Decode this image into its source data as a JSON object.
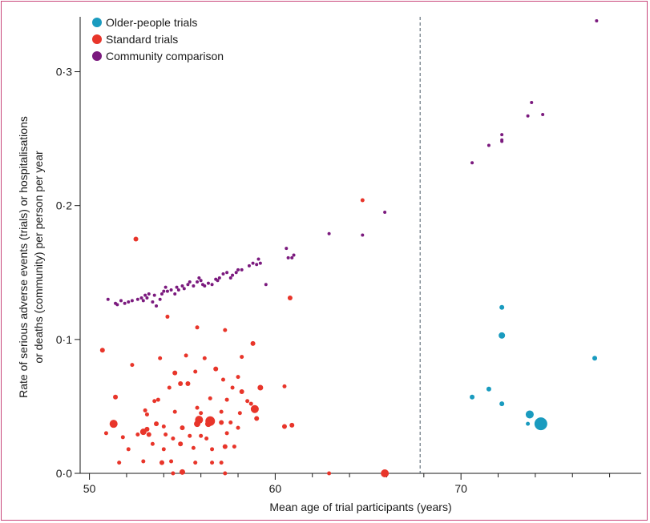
{
  "chart_data": {
    "type": "scatter",
    "xlabel": "Mean age of trial participants (years)",
    "ylabel_line1": "Rate of serious adverse events (trials) or hospitalisations",
    "ylabel_line2": "or deaths (community) per person per year",
    "xlim": [
      49.5,
      79.7
    ],
    "ylim": [
      0,
      0.341
    ],
    "x_ticks": [
      {
        "value": 50,
        "label": "50"
      },
      {
        "value": 60,
        "label": "60"
      },
      {
        "value": 70,
        "label": "70"
      }
    ],
    "x_minor_ticks": [
      52,
      54,
      56,
      58,
      62,
      64,
      66,
      68,
      72,
      74,
      76,
      78
    ],
    "y_ticks": [
      {
        "value": 0.0,
        "label": "0·0"
      },
      {
        "value": 0.1,
        "label": "0·1"
      },
      {
        "value": 0.2,
        "label": "0·2"
      },
      {
        "value": 0.3,
        "label": "0·3"
      }
    ],
    "reference_line_x": 67.8,
    "legend_position": "top-left",
    "series": [
      {
        "name": "Older-people trials",
        "color": "#1a9bbf",
        "points": [
          [
            72.2,
            0.124,
            3
          ],
          [
            72.2,
            0.103,
            4
          ],
          [
            77.2,
            0.086,
            3
          ],
          [
            70.6,
            0.057,
            3
          ],
          [
            71.5,
            0.063,
            3
          ],
          [
            72.2,
            0.052,
            3
          ],
          [
            73.7,
            0.044,
            5
          ],
          [
            73.6,
            0.037,
            2.5
          ],
          [
            74.3,
            0.037,
            8
          ]
        ]
      },
      {
        "name": "Standard trials",
        "color": "#e8352a",
        "points": [
          [
            52.5,
            0.175,
            3
          ],
          [
            64.7,
            0.204,
            2.5
          ],
          [
            60.8,
            0.131,
            3
          ],
          [
            50.7,
            0.092,
            3
          ],
          [
            54.2,
            0.117,
            2.5
          ],
          [
            55.8,
            0.109,
            2.5
          ],
          [
            57.3,
            0.107,
            2.5
          ],
          [
            58.8,
            0.097,
            3
          ],
          [
            58.2,
            0.087,
            2.5
          ],
          [
            52.3,
            0.081,
            2.5
          ],
          [
            53.8,
            0.086,
            2.5
          ],
          [
            55.2,
            0.088,
            2.5
          ],
          [
            56.2,
            0.086,
            2.5
          ],
          [
            55.7,
            0.076,
            2.5
          ],
          [
            54.6,
            0.075,
            3
          ],
          [
            56.8,
            0.078,
            3
          ],
          [
            58.0,
            0.072,
            2.5
          ],
          [
            57.2,
            0.07,
            2.5
          ],
          [
            54.9,
            0.067,
            3
          ],
          [
            55.3,
            0.067,
            3
          ],
          [
            54.3,
            0.064,
            2.5
          ],
          [
            57.7,
            0.064,
            2.5
          ],
          [
            58.2,
            0.061,
            3
          ],
          [
            59.2,
            0.064,
            3.5
          ],
          [
            60.5,
            0.065,
            2.5
          ],
          [
            51.4,
            0.057,
            3
          ],
          [
            53.7,
            0.055,
            2.5
          ],
          [
            53.5,
            0.054,
            2.5
          ],
          [
            56.5,
            0.056,
            2.5
          ],
          [
            57.4,
            0.055,
            2.5
          ],
          [
            58.5,
            0.054,
            2.5
          ],
          [
            58.7,
            0.052,
            2.5
          ],
          [
            58.9,
            0.048,
            5
          ],
          [
            53.0,
            0.047,
            2.5
          ],
          [
            53.1,
            0.044,
            2.5
          ],
          [
            55.8,
            0.049,
            2.5
          ],
          [
            54.6,
            0.046,
            2.5
          ],
          [
            56.0,
            0.045,
            2.5
          ],
          [
            57.1,
            0.046,
            2.5
          ],
          [
            58.1,
            0.045,
            2.5
          ],
          [
            51.3,
            0.037,
            5
          ],
          [
            52.9,
            0.031,
            4
          ],
          [
            53.1,
            0.033,
            3
          ],
          [
            53.6,
            0.037,
            3
          ],
          [
            54.0,
            0.035,
            2.5
          ],
          [
            55.0,
            0.034,
            3
          ],
          [
            55.9,
            0.04,
            5
          ],
          [
            55.8,
            0.037,
            4
          ],
          [
            56.5,
            0.039,
            6
          ],
          [
            56.4,
            0.037,
            4
          ],
          [
            57.1,
            0.038,
            3
          ],
          [
            57.6,
            0.038,
            2.5
          ],
          [
            58.0,
            0.034,
            2.5
          ],
          [
            59.0,
            0.041,
            3
          ],
          [
            60.5,
            0.035,
            3
          ],
          [
            60.9,
            0.036,
            3
          ],
          [
            50.9,
            0.03,
            2.5
          ],
          [
            51.8,
            0.027,
            2.5
          ],
          [
            52.6,
            0.029,
            2.5
          ],
          [
            53.2,
            0.029,
            3
          ],
          [
            54.1,
            0.029,
            2.5
          ],
          [
            54.5,
            0.026,
            2.5
          ],
          [
            55.4,
            0.028,
            2.5
          ],
          [
            56.0,
            0.028,
            2.5
          ],
          [
            56.3,
            0.026,
            2.5
          ],
          [
            57.4,
            0.03,
            2.5
          ],
          [
            52.1,
            0.018,
            2.5
          ],
          [
            53.4,
            0.022,
            2.5
          ],
          [
            54.0,
            0.018,
            2.5
          ],
          [
            54.9,
            0.022,
            3
          ],
          [
            55.6,
            0.019,
            2.5
          ],
          [
            56.6,
            0.018,
            2.5
          ],
          [
            57.3,
            0.02,
            3
          ],
          [
            57.8,
            0.02,
            2.5
          ],
          [
            51.6,
            0.008,
            2.5
          ],
          [
            52.9,
            0.009,
            2.5
          ],
          [
            53.9,
            0.008,
            3
          ],
          [
            54.4,
            0.009,
            2.5
          ],
          [
            55.7,
            0.008,
            2.5
          ],
          [
            56.6,
            0.008,
            2.5
          ],
          [
            57.1,
            0.008,
            2.5
          ],
          [
            54.5,
            0.0,
            2.5
          ],
          [
            55.0,
            0.001,
            3.5
          ],
          [
            57.3,
            0.0,
            2.5
          ],
          [
            62.9,
            0.0,
            2.5
          ],
          [
            65.9,
            0.0,
            5
          ]
        ]
      },
      {
        "name": "Community comparison",
        "color": "#7b1a7e",
        "points": [
          [
            51.0,
            0.13
          ],
          [
            51.4,
            0.127
          ],
          [
            51.5,
            0.126
          ],
          [
            51.7,
            0.129
          ],
          [
            51.9,
            0.127
          ],
          [
            52.1,
            0.128
          ],
          [
            52.3,
            0.129
          ],
          [
            52.6,
            0.13
          ],
          [
            52.8,
            0.131
          ],
          [
            52.9,
            0.129
          ],
          [
            53.0,
            0.133
          ],
          [
            53.1,
            0.131
          ],
          [
            53.2,
            0.134
          ],
          [
            53.4,
            0.128
          ],
          [
            53.5,
            0.133
          ],
          [
            53.6,
            0.125
          ],
          [
            53.8,
            0.13
          ],
          [
            53.9,
            0.134
          ],
          [
            54.0,
            0.136
          ],
          [
            54.1,
            0.139
          ],
          [
            54.2,
            0.136
          ],
          [
            54.4,
            0.137
          ],
          [
            54.6,
            0.134
          ],
          [
            54.7,
            0.139
          ],
          [
            54.8,
            0.137
          ],
          [
            55.0,
            0.14
          ],
          [
            55.1,
            0.138
          ],
          [
            55.3,
            0.141
          ],
          [
            55.4,
            0.143
          ],
          [
            55.6,
            0.14
          ],
          [
            55.8,
            0.143
          ],
          [
            55.9,
            0.146
          ],
          [
            56.0,
            0.144
          ],
          [
            56.1,
            0.141
          ],
          [
            56.2,
            0.14
          ],
          [
            56.4,
            0.142
          ],
          [
            56.6,
            0.141
          ],
          [
            56.8,
            0.145
          ],
          [
            56.9,
            0.144
          ],
          [
            57.0,
            0.146
          ],
          [
            57.2,
            0.149
          ],
          [
            57.4,
            0.15
          ],
          [
            57.6,
            0.146
          ],
          [
            57.7,
            0.148
          ],
          [
            57.9,
            0.15
          ],
          [
            58.0,
            0.152
          ],
          [
            58.2,
            0.152
          ],
          [
            58.6,
            0.155
          ],
          [
            58.8,
            0.157
          ],
          [
            59.0,
            0.156
          ],
          [
            59.1,
            0.16
          ],
          [
            59.2,
            0.157
          ],
          [
            59.5,
            0.141
          ],
          [
            60.6,
            0.168
          ],
          [
            60.7,
            0.161
          ],
          [
            60.9,
            0.161
          ],
          [
            61.0,
            0.163
          ],
          [
            62.9,
            0.179
          ],
          [
            64.7,
            0.178
          ],
          [
            65.9,
            0.195
          ],
          [
            70.6,
            0.232
          ],
          [
            71.5,
            0.245
          ],
          [
            72.2,
            0.249
          ],
          [
            72.2,
            0.253
          ],
          [
            72.2,
            0.248
          ],
          [
            73.6,
            0.267
          ],
          [
            73.8,
            0.277
          ],
          [
            74.4,
            0.268
          ],
          [
            77.3,
            0.338
          ]
        ]
      }
    ]
  }
}
